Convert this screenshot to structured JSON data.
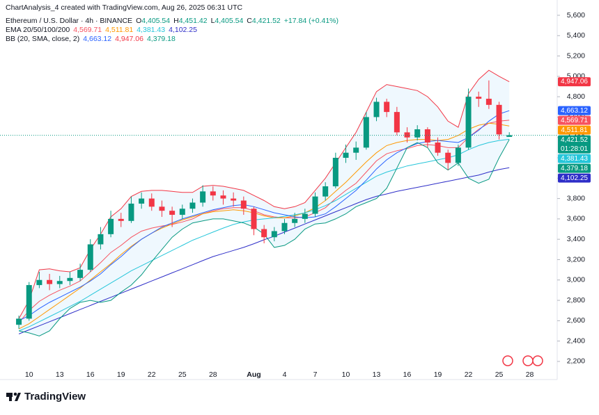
{
  "chart_data": {
    "type": "candlestick",
    "title": "ChartAnalysis_4 created with TradingView.com, Aug 26, 2025 06:31 UTC",
    "subtitle": "Ethereum / U.S. Dollar · 4h · BINANCE",
    "ohlc_labels": [
      {
        "label": "O",
        "value": "4,405.54"
      },
      {
        "label": "H",
        "value": "4,451.42"
      },
      {
        "label": "L",
        "value": "4,405.54"
      },
      {
        "label": "C",
        "value": "4,421.52"
      }
    ],
    "change_label": "+17.84 (+0.41%)",
    "up_color": "#089981",
    "down_color": "#f23645",
    "categories": [
      null,
      "10",
      null,
      null,
      "13",
      null,
      null,
      "16",
      null,
      null,
      "19",
      null,
      null,
      "22",
      null,
      null,
      "25",
      null,
      null,
      "28",
      null,
      null,
      null,
      "Aug",
      null,
      null,
      "4",
      null,
      null,
      "7",
      null,
      null,
      "10",
      null,
      null,
      "13",
      null,
      null,
      "16",
      null,
      null,
      "19",
      null,
      null,
      "22",
      null,
      null,
      "25",
      null,
      null,
      "28",
      null,
      null
    ],
    "open": [
      2560,
      2620,
      2950,
      3000,
      2960,
      2990,
      3020,
      3100,
      3350,
      3450,
      3600,
      3580,
      3750,
      3800,
      3720,
      3680,
      3640,
      3700,
      3760,
      3870,
      3830,
      3800,
      3780,
      3700,
      3500,
      3420,
      3480,
      3560,
      3600,
      3650,
      3820,
      3920,
      4200,
      4250,
      4300,
      4600,
      4750,
      4650,
      4450,
      4400,
      4480,
      4350,
      4250,
      4150,
      4300,
      4800,
      4780,
      4720,
      4405.54,
      null,
      null,
      null,
      null
    ],
    "high": [
      2650,
      2980,
      3080,
      3060,
      3040,
      3080,
      3160,
      3400,
      3520,
      3680,
      3660,
      3820,
      3860,
      3850,
      3780,
      3720,
      3740,
      3800,
      3930,
      3920,
      3880,
      3860,
      3820,
      3720,
      3540,
      3520,
      3600,
      3660,
      3700,
      3860,
      3960,
      4250,
      4330,
      4360,
      4650,
      4790,
      4780,
      4700,
      4500,
      4520,
      4500,
      4400,
      4280,
      4330,
      4880,
      4850,
      4960,
      4750,
      4451.42,
      null,
      null,
      null,
      null
    ],
    "low": [
      2520,
      2600,
      2920,
      2900,
      2920,
      2950,
      2990,
      3080,
      3300,
      3420,
      3520,
      3560,
      3700,
      3680,
      3620,
      3520,
      3600,
      3660,
      3720,
      3780,
      3740,
      3720,
      3640,
      3440,
      3360,
      3380,
      3450,
      3520,
      3560,
      3620,
      3780,
      3900,
      4150,
      4180,
      4280,
      4560,
      4600,
      4420,
      4350,
      4370,
      4300,
      4220,
      4080,
      4120,
      4280,
      4700,
      4680,
      4380,
      4405.54,
      null,
      null,
      null,
      null
    ],
    "close": [
      2620,
      2950,
      3000,
      2960,
      2990,
      3020,
      3100,
      3350,
      3450,
      3600,
      3580,
      3750,
      3800,
      3720,
      3680,
      3640,
      3700,
      3760,
      3870,
      3830,
      3800,
      3780,
      3700,
      3500,
      3420,
      3480,
      3560,
      3600,
      3650,
      3820,
      3920,
      4200,
      4250,
      4300,
      4600,
      4750,
      4650,
      4450,
      4400,
      4480,
      4350,
      4250,
      4150,
      4300,
      4800,
      4780,
      4720,
      4430,
      4421.52,
      null,
      null,
      null,
      null
    ],
    "price_label": "4,421.52",
    "countdown": "01:28:01",
    "indicators": [
      {
        "name": "EMA 20/50/100/200",
        "lines": [
          {
            "color": "#f7525f",
            "last_label": "4,569.71",
            "values": [
              2580,
              2700,
              2790,
              2850,
              2900,
              2940,
              2990,
              3080,
              3170,
              3270,
              3340,
              3420,
              3480,
              3510,
              3530,
              3545,
              3570,
              3600,
              3650,
              3680,
              3700,
              3710,
              3710,
              3680,
              3640,
              3620,
              3610,
              3610,
              3620,
              3660,
              3710,
              3800,
              3880,
              3950,
              4060,
              4170,
              4240,
              4270,
              4290,
              4320,
              4330,
              4320,
              4300,
              4300,
              4400,
              4480,
              4540,
              4560,
              4569.71,
              null,
              null,
              null,
              null
            ]
          },
          {
            "color": "#ff9800",
            "last_label": "4,511.81",
            "values": [
              2520,
              2570,
              2640,
              2710,
              2780,
              2850,
              2920,
              3000,
              3080,
              3160,
              3250,
              3330,
              3400,
              3460,
              3510,
              3550,
              3590,
              3620,
              3650,
              3670,
              3680,
              3690,
              3680,
              3660,
              3630,
              3610,
              3610,
              3630,
              3660,
              3710,
              3780,
              3870,
              3960,
              4060,
              4160,
              4250,
              4320,
              4350,
              4370,
              4380,
              4380,
              4370,
              4380,
              4420,
              4480,
              4520,
              4540,
              4530,
              4511.81,
              null,
              null,
              null,
              null
            ]
          },
          {
            "color": "#26c6da",
            "last_label": "4,381.43",
            "values": [
              2500,
              2540,
              2590,
              2640,
              2690,
              2740,
              2790,
              2850,
              2910,
              2970,
              3030,
              3090,
              3140,
              3190,
              3240,
              3290,
              3340,
              3390,
              3430,
              3470,
              3510,
              3545,
              3570,
              3590,
              3600,
              3610,
              3625,
              3640,
              3660,
              3690,
              3730,
              3780,
              3840,
              3900,
              3960,
              4020,
              4060,
              4090,
              4120,
              4140,
              4160,
              4180,
              4200,
              4230,
              4280,
              4320,
              4350,
              4370,
              4381.43,
              null,
              null,
              null,
              null
            ]
          },
          {
            "color": "#2e2ec8",
            "last_label": "4,102.25",
            "values": [
              2470,
              2510,
              2550,
              2590,
              2630,
              2670,
              2710,
              2750,
              2790,
              2830,
              2870,
              2910,
              2950,
              2990,
              3030,
              3070,
              3110,
              3150,
              3190,
              3230,
              3260,
              3290,
              3320,
              3356,
              3395,
              3430,
              3470,
              3510,
              3550,
              3590,
              3630,
              3670,
              3710,
              3750,
              3790,
              3822,
              3845,
              3870,
              3890,
              3910,
              3930,
              3950,
              3970,
              3990,
              4010,
              4030,
              4060,
              4085,
              4102.25,
              null,
              null,
              null,
              null
            ]
          }
        ]
      },
      {
        "name": "BB (20, SMA, close, 2)",
        "band_fill": "rgba(33,150,243,0.07)",
        "lines": [
          {
            "color": "#2962ff",
            "last_label": "4,663.12",
            "values": [
              2600,
              2650,
              2720,
              2780,
              2830,
              2880,
              2930,
              2990,
              3060,
              3150,
              3230,
              3320,
              3400,
              3460,
              3520,
              3560,
              3600,
              3630,
              3660,
              3690,
              3710,
              3730,
              3740,
              3720,
              3690,
              3660,
              3640,
              3620,
              3610,
              3620,
              3650,
              3720,
              3800,
              3880,
              3980,
              4090,
              4180,
              4250,
              4300,
              4340,
              4360,
              4370,
              4360,
              4350,
              4400,
              4470,
              4560,
              4630,
              4663.12,
              null,
              null,
              null,
              null
            ]
          },
          {
            "color": "#f23645",
            "last_label": "4,947.06",
            "values": [
              2620,
              2800,
              3100,
              3110,
              3090,
              3080,
              3120,
              3300,
              3450,
              3620,
              3700,
              3820,
              3870,
              3880,
              3880,
              3870,
              3860,
              3860,
              3920,
              3930,
              3920,
              3900,
              3880,
              3830,
              3780,
              3720,
              3700,
              3720,
              3760,
              3880,
              4000,
              4150,
              4300,
              4450,
              4650,
              4850,
              4920,
              4900,
              4880,
              4860,
              4800,
              4700,
              4560,
              4500,
              4830,
              4970,
              5060,
              5000,
              4947.06,
              null,
              null,
              null,
              null
            ]
          },
          {
            "color": "#089981",
            "last_label": "4,379.18",
            "values": [
              2500,
              2480,
              2450,
              2500,
              2620,
              2720,
              2780,
              2800,
              2780,
              2800,
              2880,
              2950,
              3050,
              3180,
              3300,
              3420,
              3500,
              3560,
              3580,
              3600,
              3600,
              3580,
              3560,
              3520,
              3450,
              3320,
              3340,
              3400,
              3500,
              3550,
              3560,
              3600,
              3650,
              3720,
              3760,
              3800,
              3900,
              4100,
              4300,
              4350,
              4300,
              4150,
              4080,
              4150,
              4000,
              3950,
              3990,
              4200,
              4379.18,
              null,
              null,
              null,
              null
            ]
          }
        ]
      }
    ],
    "ylim": [
      2022,
      5750
    ],
    "yticks": [
      {
        "value": 2200,
        "label": "2,200"
      },
      {
        "value": 2400,
        "label": "2,400"
      },
      {
        "value": 2600,
        "label": "2,600"
      },
      {
        "value": 2800,
        "label": "2,800"
      },
      {
        "value": 3000,
        "label": "3,000"
      },
      {
        "value": 3200,
        "label": "3,200"
      },
      {
        "value": 3400,
        "label": "3,400"
      },
      {
        "value": 3600,
        "label": "3,600"
      },
      {
        "value": 3800,
        "label": "3,800"
      },
      {
        "value": 4000,
        "label": "4,000"
      },
      {
        "value": 4200,
        "label": "4,200"
      },
      {
        "value": 4400,
        "label": "4,400"
      },
      {
        "value": 4600,
        "label": "4,600"
      },
      {
        "value": 4800,
        "label": "4,800"
      },
      {
        "value": 5000,
        "label": "5,000"
      },
      {
        "value": 5200,
        "label": "5,200"
      },
      {
        "value": 5400,
        "label": "5,400"
      },
      {
        "value": 5600,
        "label": "5,600"
      }
    ],
    "grid": false
  },
  "watermark": "TradingView"
}
